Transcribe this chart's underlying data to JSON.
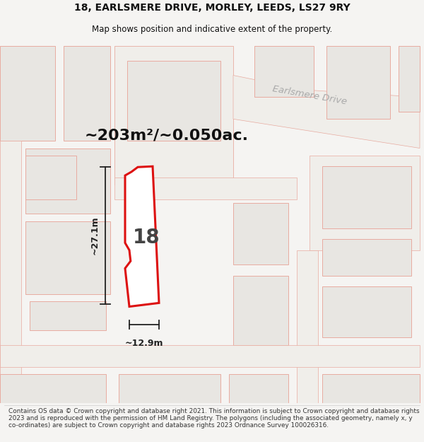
{
  "title_line1": "18, EARLSMERE DRIVE, MORLEY, LEEDS, LS27 9RY",
  "title_line2": "Map shows position and indicative extent of the property.",
  "area_text": "~203m²/~0.050ac.",
  "number_label": "18",
  "dim_horiz": "~12.9m",
  "dim_vert": "~27.1m",
  "road_label": "Earlsmere Drive",
  "footer_text": "Contains OS data © Crown copyright and database right 2021. This information is subject to Crown copyright and database rights 2023 and is reproduced with the permission of HM Land Registry. The polygons (including the associated geometry, namely x, y co-ordinates) are subject to Crown copyright and database rights 2023 Ordnance Survey 100026316.",
  "bg_color": "#f5f4f2",
  "map_bg": "#f5f4f2",
  "building_fill": "#e8e6e2",
  "building_edge": "#e8aba0",
  "road_outline": "#e8aba0",
  "highlight_fill": "#ffffff",
  "highlight_edge": "#dd1111",
  "dim_line_color": "#222222",
  "title_color": "#111111",
  "area_color": "#111111",
  "road_label_color": "#aaaaaa",
  "footer_color": "#333333"
}
